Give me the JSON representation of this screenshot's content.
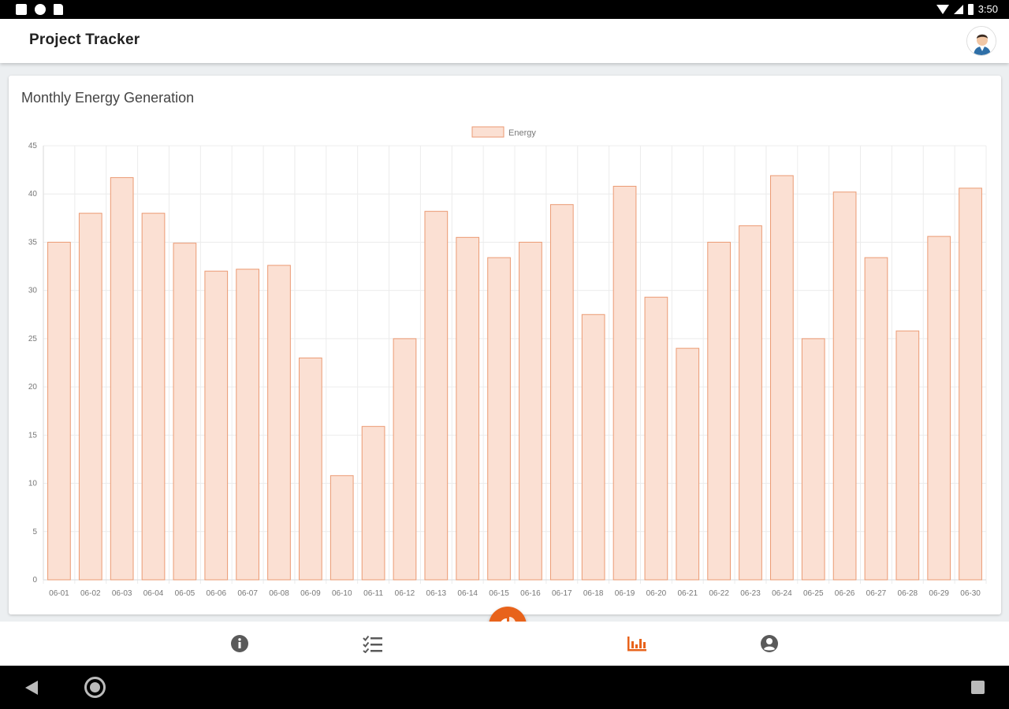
{
  "status_bar": {
    "time": "3:50"
  },
  "app_bar": {
    "title": "Project Tracker",
    "avatar": "user-avatar"
  },
  "card": {
    "title": "Monthly Energy Generation"
  },
  "chart_data": {
    "type": "bar",
    "legend": [
      "Energy"
    ],
    "legend_position": "top",
    "grid": true,
    "ylim": [
      0,
      45
    ],
    "y_ticks": [
      0,
      5,
      10,
      15,
      20,
      25,
      30,
      35,
      40,
      45
    ],
    "categories": [
      "06-01",
      "06-02",
      "06-03",
      "06-04",
      "06-05",
      "06-06",
      "06-07",
      "06-08",
      "06-09",
      "06-10",
      "06-11",
      "06-12",
      "06-13",
      "06-14",
      "06-15",
      "06-16",
      "06-17",
      "06-18",
      "06-19",
      "06-20",
      "06-21",
      "06-22",
      "06-23",
      "06-24",
      "06-25",
      "06-26",
      "06-27",
      "06-28",
      "06-29",
      "06-30"
    ],
    "series": [
      {
        "name": "Energy",
        "values": [
          35,
          38,
          41.7,
          38,
          34.9,
          32,
          32.2,
          32.6,
          23,
          10.8,
          15.9,
          25,
          38.2,
          35.5,
          33.4,
          35,
          38.9,
          27.5,
          40.8,
          29.3,
          24,
          35,
          36.7,
          41.9,
          25,
          40.2,
          33.4,
          25.8,
          35.6,
          40.6
        ]
      }
    ],
    "colors": {
      "bar_fill": "#fbe0d3",
      "bar_stroke": "#eb9a73",
      "grid": "#ececec",
      "tick_text": "#777777"
    }
  },
  "bottom_nav": {
    "items": [
      "info-icon",
      "checklist-icon",
      "bar-chart-icon",
      "account-icon"
    ],
    "active": "bar-chart-icon",
    "fab_icon": "pie-chart-add-icon",
    "accent": "#e8631b",
    "inactive_color": "#5a5a5a"
  }
}
